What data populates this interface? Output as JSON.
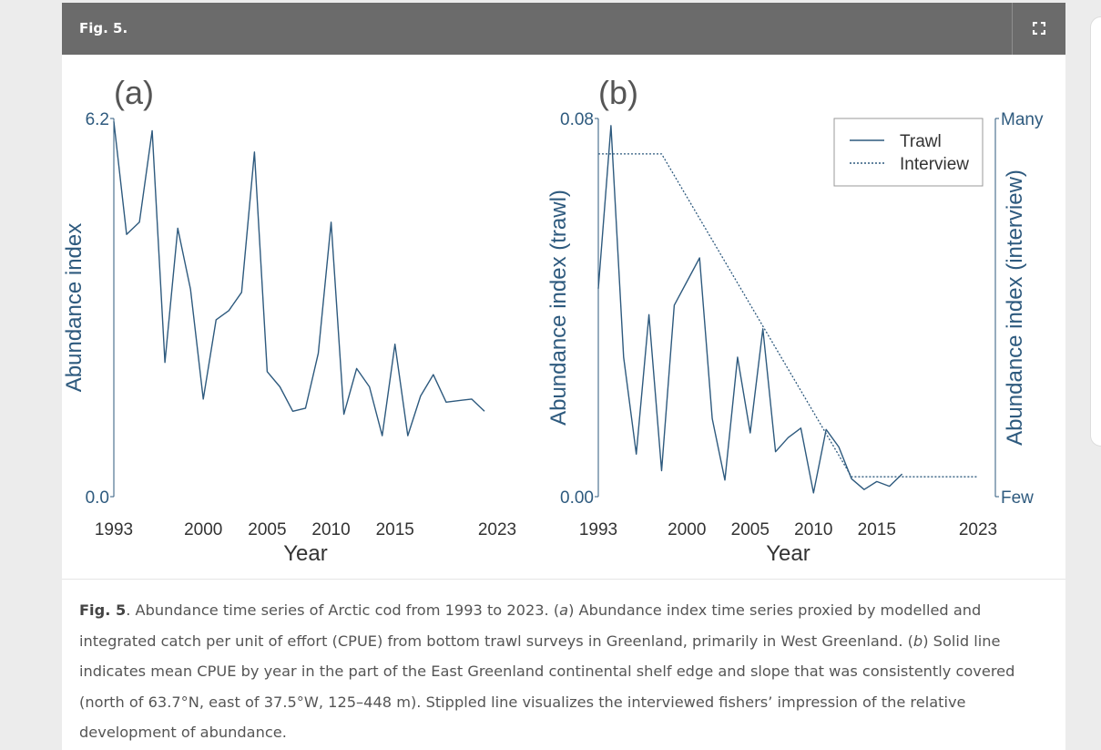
{
  "header": {
    "title": "Fig. 5."
  },
  "caption": {
    "label": "Fig. 5",
    "parts": [
      ". Abundance time series of Arctic cod from 1993 to 2023. (",
      ") Abundance index time series proxied by modelled and integrated catch per unit of effort (CPUE) from bottom trawl surveys in Greenland, primarily in West Greenland. (",
      ") Solid line indicates mean CPUE by year in the part of the East Greenland continental shelf edge and slope that was consistently covered (north of 63.7°N, east of 37.5°W, 125–448 m). Stippled line visualizes the interviewed fishers’ impression of the relative development of abundance."
    ],
    "italic_a": "a",
    "italic_b": "b"
  },
  "colors": {
    "line": "#2e5a7e",
    "axis": "#2e5a7e",
    "header_bg": "#6b6b6b",
    "panel_label": "#555555"
  },
  "chart_data": [
    {
      "type": "line",
      "panel_label": "(a)",
      "xlabel": "Year",
      "ylabel": "Abundance index",
      "xlim": [
        1993,
        2023
      ],
      "ylim": [
        0,
        6.2
      ],
      "xticks": [
        1993,
        2000,
        2005,
        2010,
        2015,
        2023
      ],
      "yticks": [
        "0.0",
        "6.2"
      ],
      "series": [
        {
          "style": "solid",
          "x": [
            1993,
            1994,
            1995,
            1996,
            1997,
            1998,
            1999,
            2000,
            2001,
            2002,
            2003,
            2004,
            2005,
            2006,
            2007,
            2008,
            2009,
            2010,
            2011,
            2012,
            2013,
            2014,
            2015,
            2016,
            2017,
            2018,
            2019,
            2021,
            2022
          ],
          "y": [
            6.15,
            4.3,
            4.5,
            6.0,
            2.2,
            4.4,
            3.4,
            1.6,
            2.9,
            3.05,
            3.35,
            5.65,
            2.05,
            1.8,
            1.4,
            1.45,
            2.35,
            4.5,
            1.35,
            2.1,
            1.8,
            1.0,
            2.5,
            1.0,
            1.65,
            2.0,
            1.55,
            1.6,
            1.4
          ]
        }
      ]
    },
    {
      "type": "line",
      "panel_label": "(b)",
      "xlabel": "Year",
      "ylabel": "Abundance index (trawl)",
      "ylabel_right": "Abundance index (interview)",
      "xlim": [
        1993,
        2023
      ],
      "ylim": [
        0,
        0.08
      ],
      "xticks": [
        1993,
        2000,
        2005,
        2010,
        2015,
        2023
      ],
      "yticks": [
        "0.00",
        "0.08"
      ],
      "yticks_right": [
        "Few",
        "Many"
      ],
      "legend": {
        "position": "top-right",
        "entries": [
          "Trawl",
          "Interview"
        ]
      },
      "series": [
        {
          "name": "Trawl",
          "style": "solid",
          "x": [
            1993,
            1994,
            1995,
            1996,
            1997,
            1998,
            1999,
            2000,
            2001,
            2002,
            2003,
            2004,
            2005,
            2006,
            2007,
            2008,
            2009,
            2010,
            2011,
            2012,
            2013,
            2014,
            2015,
            2016,
            2017
          ],
          "y": [
            0.044,
            0.0785,
            0.0295,
            0.009,
            0.0385,
            0.0055,
            0.0405,
            0.0455,
            0.0505,
            0.0165,
            0.0035,
            0.0295,
            0.0135,
            0.0355,
            0.0095,
            0.0125,
            0.0145,
            0.0008,
            0.0142,
            0.0105,
            0.0038,
            0.0015,
            0.0032,
            0.0022,
            0.0048
          ]
        },
        {
          "name": "Interview",
          "style": "dotted",
          "x": [
            1993,
            1998,
            2013,
            2023
          ],
          "y": [
            0.0725,
            0.0725,
            0.0042,
            0.0042
          ]
        }
      ]
    }
  ]
}
